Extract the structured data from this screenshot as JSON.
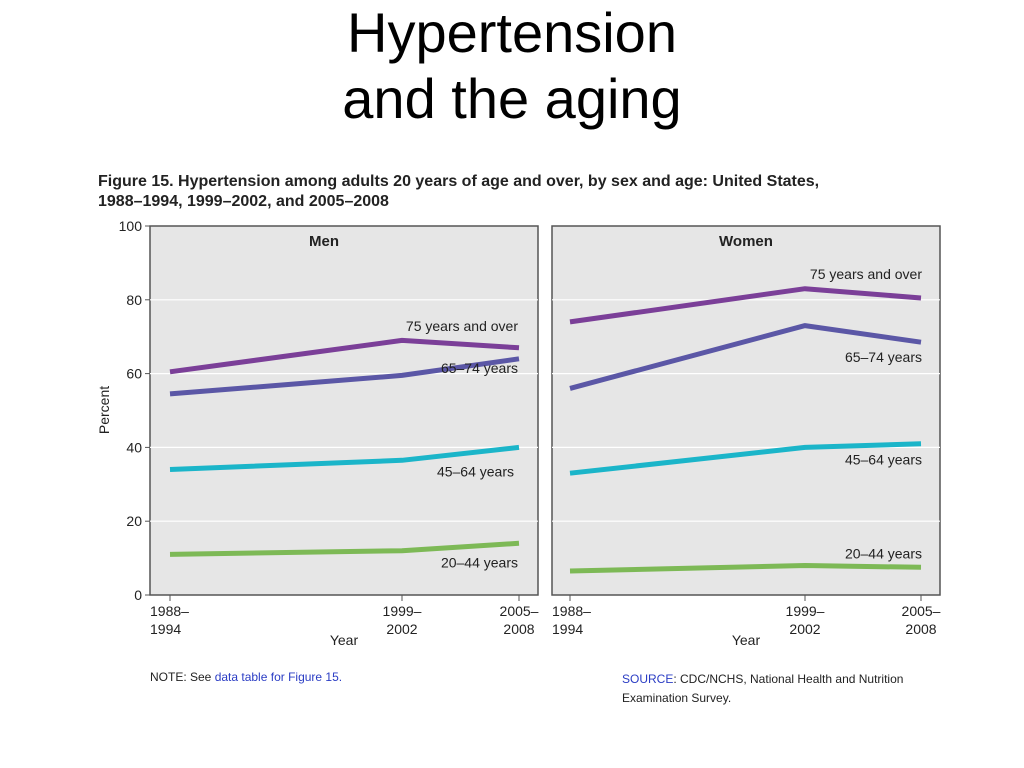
{
  "slide": {
    "title_line1": "Hypertension",
    "title_line2": "and the aging"
  },
  "figure": {
    "caption_line1": "Figure 15. Hypertension among adults 20 years of age and over, by sex and age: United States,",
    "caption_line2": "1988–1994, 1999–2002, and 2005–2008",
    "note_prefix": "NOTE: See ",
    "note_link": "data table for Figure 15.",
    "source_label": "SOURCE",
    "source_text": ": CDC/NCHS, National Health and Nutrition Examination Survey."
  },
  "chart_data": [
    {
      "type": "line",
      "title": "Men",
      "xlabel": "Year",
      "ylabel": "Percent",
      "ylim": [
        0,
        100
      ],
      "yticks": [
        0,
        20,
        40,
        60,
        80,
        100
      ],
      "x": [
        "1988–1994",
        "1999–2002",
        "2005–2008"
      ],
      "x_ticks": [
        {
          "line1": "1988–",
          "line2": "1994"
        },
        {
          "line1": "1999–",
          "line2": "2002"
        },
        {
          "line1": "2005–",
          "line2": "2008"
        }
      ],
      "grid": true,
      "series": [
        {
          "name": "75 years and over",
          "color": "#7b3f98",
          "values": [
            60.5,
            69,
            67
          ]
        },
        {
          "name": "65–74 years",
          "color": "#5b57a6",
          "values": [
            54.5,
            59.5,
            64
          ]
        },
        {
          "name": "45–64 years",
          "color": "#1bb5c9",
          "values": [
            34,
            36.5,
            40
          ]
        },
        {
          "name": "20–44 years",
          "color": "#7db956",
          "values": [
            11,
            12,
            14
          ]
        }
      ]
    },
    {
      "type": "line",
      "title": "Women",
      "xlabel": "Year",
      "ylim": [
        0,
        100
      ],
      "yticks": [
        0,
        20,
        40,
        60,
        80,
        100
      ],
      "x": [
        "1988–1994",
        "1999–2002",
        "2005–2008"
      ],
      "x_ticks": [
        {
          "line1": "1988–",
          "line2": "1994"
        },
        {
          "line1": "1999–",
          "line2": "2002"
        },
        {
          "line1": "2005–",
          "line2": "2008"
        }
      ],
      "grid": true,
      "series": [
        {
          "name": "75 years and over",
          "color": "#7b3f98",
          "values": [
            74,
            83,
            80.5
          ]
        },
        {
          "name": "65–74 years",
          "color": "#5b57a6",
          "values": [
            56,
            73,
            68.5
          ]
        },
        {
          "name": "45–64 years",
          "color": "#1bb5c9",
          "values": [
            33,
            40,
            41
          ]
        },
        {
          "name": "20–44 years",
          "color": "#7db956",
          "values": [
            6.5,
            8,
            7.5
          ]
        }
      ]
    }
  ]
}
